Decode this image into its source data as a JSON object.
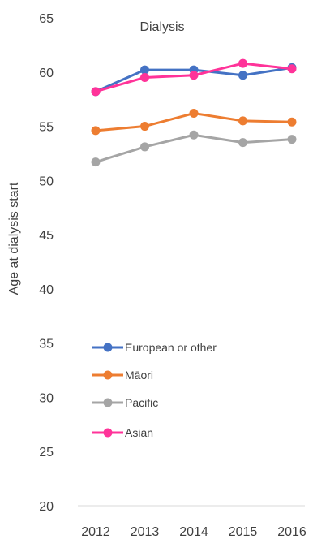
{
  "chart_data": {
    "type": "line",
    "title": "Dialysis",
    "xlabel": "",
    "ylabel": "Age at dialysis start",
    "categories": [
      "2012",
      "2013",
      "2014",
      "2015",
      "2016"
    ],
    "ylim": [
      20,
      65
    ],
    "yticks": [
      20,
      25,
      30,
      35,
      40,
      45,
      50,
      55,
      60,
      65
    ],
    "grid": false,
    "legend_position": "lower-left",
    "series": [
      {
        "name": "European or other",
        "color": "#4472C4",
        "values": [
          58.2,
          60.2,
          60.2,
          59.7,
          60.4
        ]
      },
      {
        "name": "Māori",
        "color": "#ED7D31",
        "values": [
          54.6,
          55.0,
          56.2,
          55.5,
          55.4
        ]
      },
      {
        "name": "Pacific",
        "color": "#A5A5A5",
        "values": [
          51.7,
          53.1,
          54.2,
          53.5,
          53.8
        ]
      },
      {
        "name": "Asian",
        "color": "#FF3399",
        "values": [
          58.2,
          59.5,
          59.7,
          60.8,
          60.3
        ]
      }
    ]
  }
}
